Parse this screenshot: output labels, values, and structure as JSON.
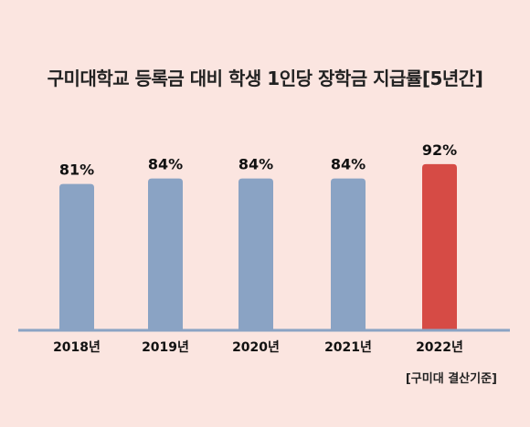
{
  "chart_data": {
    "type": "bar",
    "title": "구미대학교 등록금 대비 학생 1인당 장학금 지급률[5년간]",
    "categories": [
      "2018년",
      "2019년",
      "2020년",
      "2021년",
      "2022년"
    ],
    "values": [
      81,
      84,
      84,
      84,
      92
    ],
    "value_labels": [
      "81%",
      "84%",
      "84%",
      "84%",
      "92%"
    ],
    "unit": "%",
    "ylim": [
      0,
      100
    ],
    "grid": false,
    "legend": "none",
    "colors": {
      "bar": "#8aa3c4",
      "highlight": "#d64b45",
      "axis": "#8aa3c4",
      "background": "#fbe5e0"
    },
    "highlight_index": 4,
    "note": "[구미대 결산기준]"
  }
}
